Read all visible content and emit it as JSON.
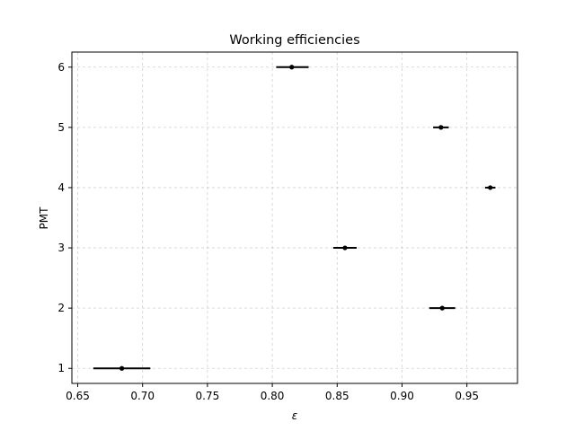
{
  "chart_data": {
    "type": "scatter",
    "title": "Working efficiencies",
    "xlabel": "ε",
    "ylabel": "PMT",
    "xlim": [
      0.6455,
      0.989
    ],
    "ylim": [
      0.75,
      6.25
    ],
    "xticks": [
      0.65,
      0.7,
      0.75,
      0.8,
      0.85,
      0.9,
      0.95
    ],
    "xtick_labels": [
      "0.65",
      "0.70",
      "0.75",
      "0.80",
      "0.85",
      "0.90",
      "0.95"
    ],
    "yticks": [
      1,
      2,
      3,
      4,
      5,
      6
    ],
    "ytick_labels": [
      "1",
      "2",
      "3",
      "4",
      "5",
      "6"
    ],
    "grid": true,
    "marker_color": "#000000",
    "points": [
      {
        "pmt": 1,
        "eff": 0.684,
        "err_low": 0.662,
        "err_high": 0.706
      },
      {
        "pmt": 2,
        "eff": 0.931,
        "err_low": 0.921,
        "err_high": 0.941
      },
      {
        "pmt": 3,
        "eff": 0.856,
        "err_low": 0.847,
        "err_high": 0.865
      },
      {
        "pmt": 4,
        "eff": 0.968,
        "err_low": 0.964,
        "err_high": 0.972
      },
      {
        "pmt": 5,
        "eff": 0.93,
        "err_low": 0.924,
        "err_high": 0.936
      },
      {
        "pmt": 6,
        "eff": 0.815,
        "err_low": 0.803,
        "err_high": 0.828
      }
    ]
  }
}
